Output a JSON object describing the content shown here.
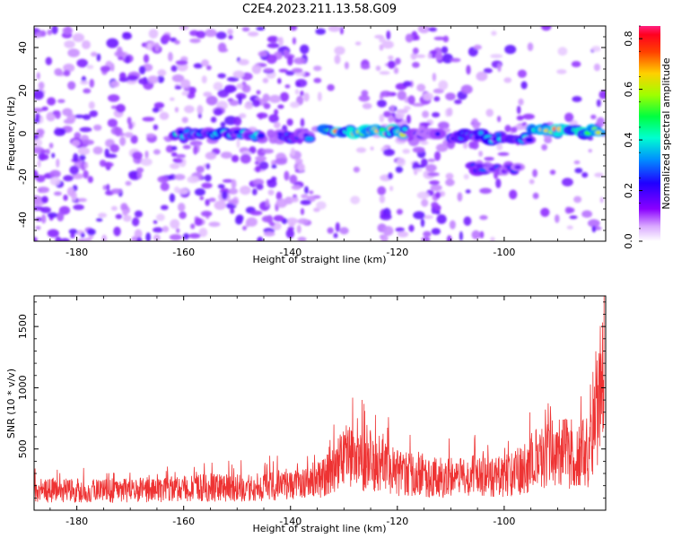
{
  "page": {
    "title": "C2E4.2023.211.13.58.G09"
  },
  "colors": {
    "snr_line": "#ee3333",
    "axis": "#000000",
    "colormap": [
      "#ffffff",
      "#e9c8ff",
      "#b070ff",
      "#7a00ff",
      "#1f00ff",
      "#0080ff",
      "#00e0ff",
      "#00ff80",
      "#80ff00",
      "#ffe000",
      "#ff6000",
      "#ff0000",
      "#ff1070"
    ]
  },
  "chart_data": [
    {
      "type": "heatmap",
      "title": "C2E4.2023.211.13.58.G09",
      "xlabel": "Height of straight line (km)",
      "ylabel": "Frequency (Hz)",
      "xlim": [
        -188,
        -81
      ],
      "ylim": [
        -50,
        50
      ],
      "xticks": [
        -180,
        -160,
        -140,
        -120,
        -100
      ],
      "yticks": [
        -40,
        -20,
        0,
        20,
        40
      ],
      "colorbar": {
        "label": "Normalized spectral amplitude",
        "range": [
          0.0,
          0.85
        ],
        "ticks": [
          "0.0",
          "0.2",
          "0.4",
          "0.6",
          "0.8"
        ]
      },
      "ridge_segments": [
        {
          "x": [
            -162,
            -145
          ],
          "y": 0,
          "peak": 0.45
        },
        {
          "x": [
            -142,
            -136
          ],
          "y": -1,
          "peak": 0.35
        },
        {
          "x": [
            -134,
            -118
          ],
          "y": 1,
          "peak": 0.75
        },
        {
          "x": [
            -117,
            -112
          ],
          "y": 0,
          "peak": 0.3
        },
        {
          "x": [
            -110,
            -104
          ],
          "y": -1,
          "peak": 0.4
        },
        {
          "x": [
            -106,
            -97
          ],
          "y": -16,
          "peak": 0.3
        },
        {
          "x": [
            -103,
            -95
          ],
          "y": -2,
          "peak": 0.45
        },
        {
          "x": [
            -95,
            -82
          ],
          "y": 1,
          "peak": 0.8
        }
      ],
      "noise_level": 0.15
    },
    {
      "type": "line",
      "xlabel": "Height of straight line (km)",
      "ylabel": "SNR (10 * v/v)",
      "xlim": [
        -188,
        -81
      ],
      "ylim": [
        0,
        1750
      ],
      "xticks": [
        -180,
        -160,
        -140,
        -120,
        -100
      ],
      "yticks": [
        500,
        1000,
        1500
      ],
      "series": [
        {
          "x": [
            -188,
            -180,
            -170,
            -160,
            -155,
            -150,
            -145,
            -140,
            -135,
            -132,
            -130,
            -127,
            -125,
            -122,
            -120,
            -117,
            -115,
            -112,
            -110,
            -106,
            -103,
            -100,
            -98,
            -95,
            -92,
            -90,
            -88,
            -86,
            -84,
            -83,
            -82,
            -81.5,
            -81.2
          ],
          "y": [
            180,
            170,
            175,
            190,
            200,
            195,
            210,
            220,
            260,
            330,
            480,
            430,
            450,
            380,
            330,
            310,
            300,
            290,
            280,
            300,
            290,
            300,
            330,
            420,
            480,
            540,
            500,
            480,
            520,
            700,
            1050,
            1450,
            1700
          ]
        }
      ]
    }
  ]
}
